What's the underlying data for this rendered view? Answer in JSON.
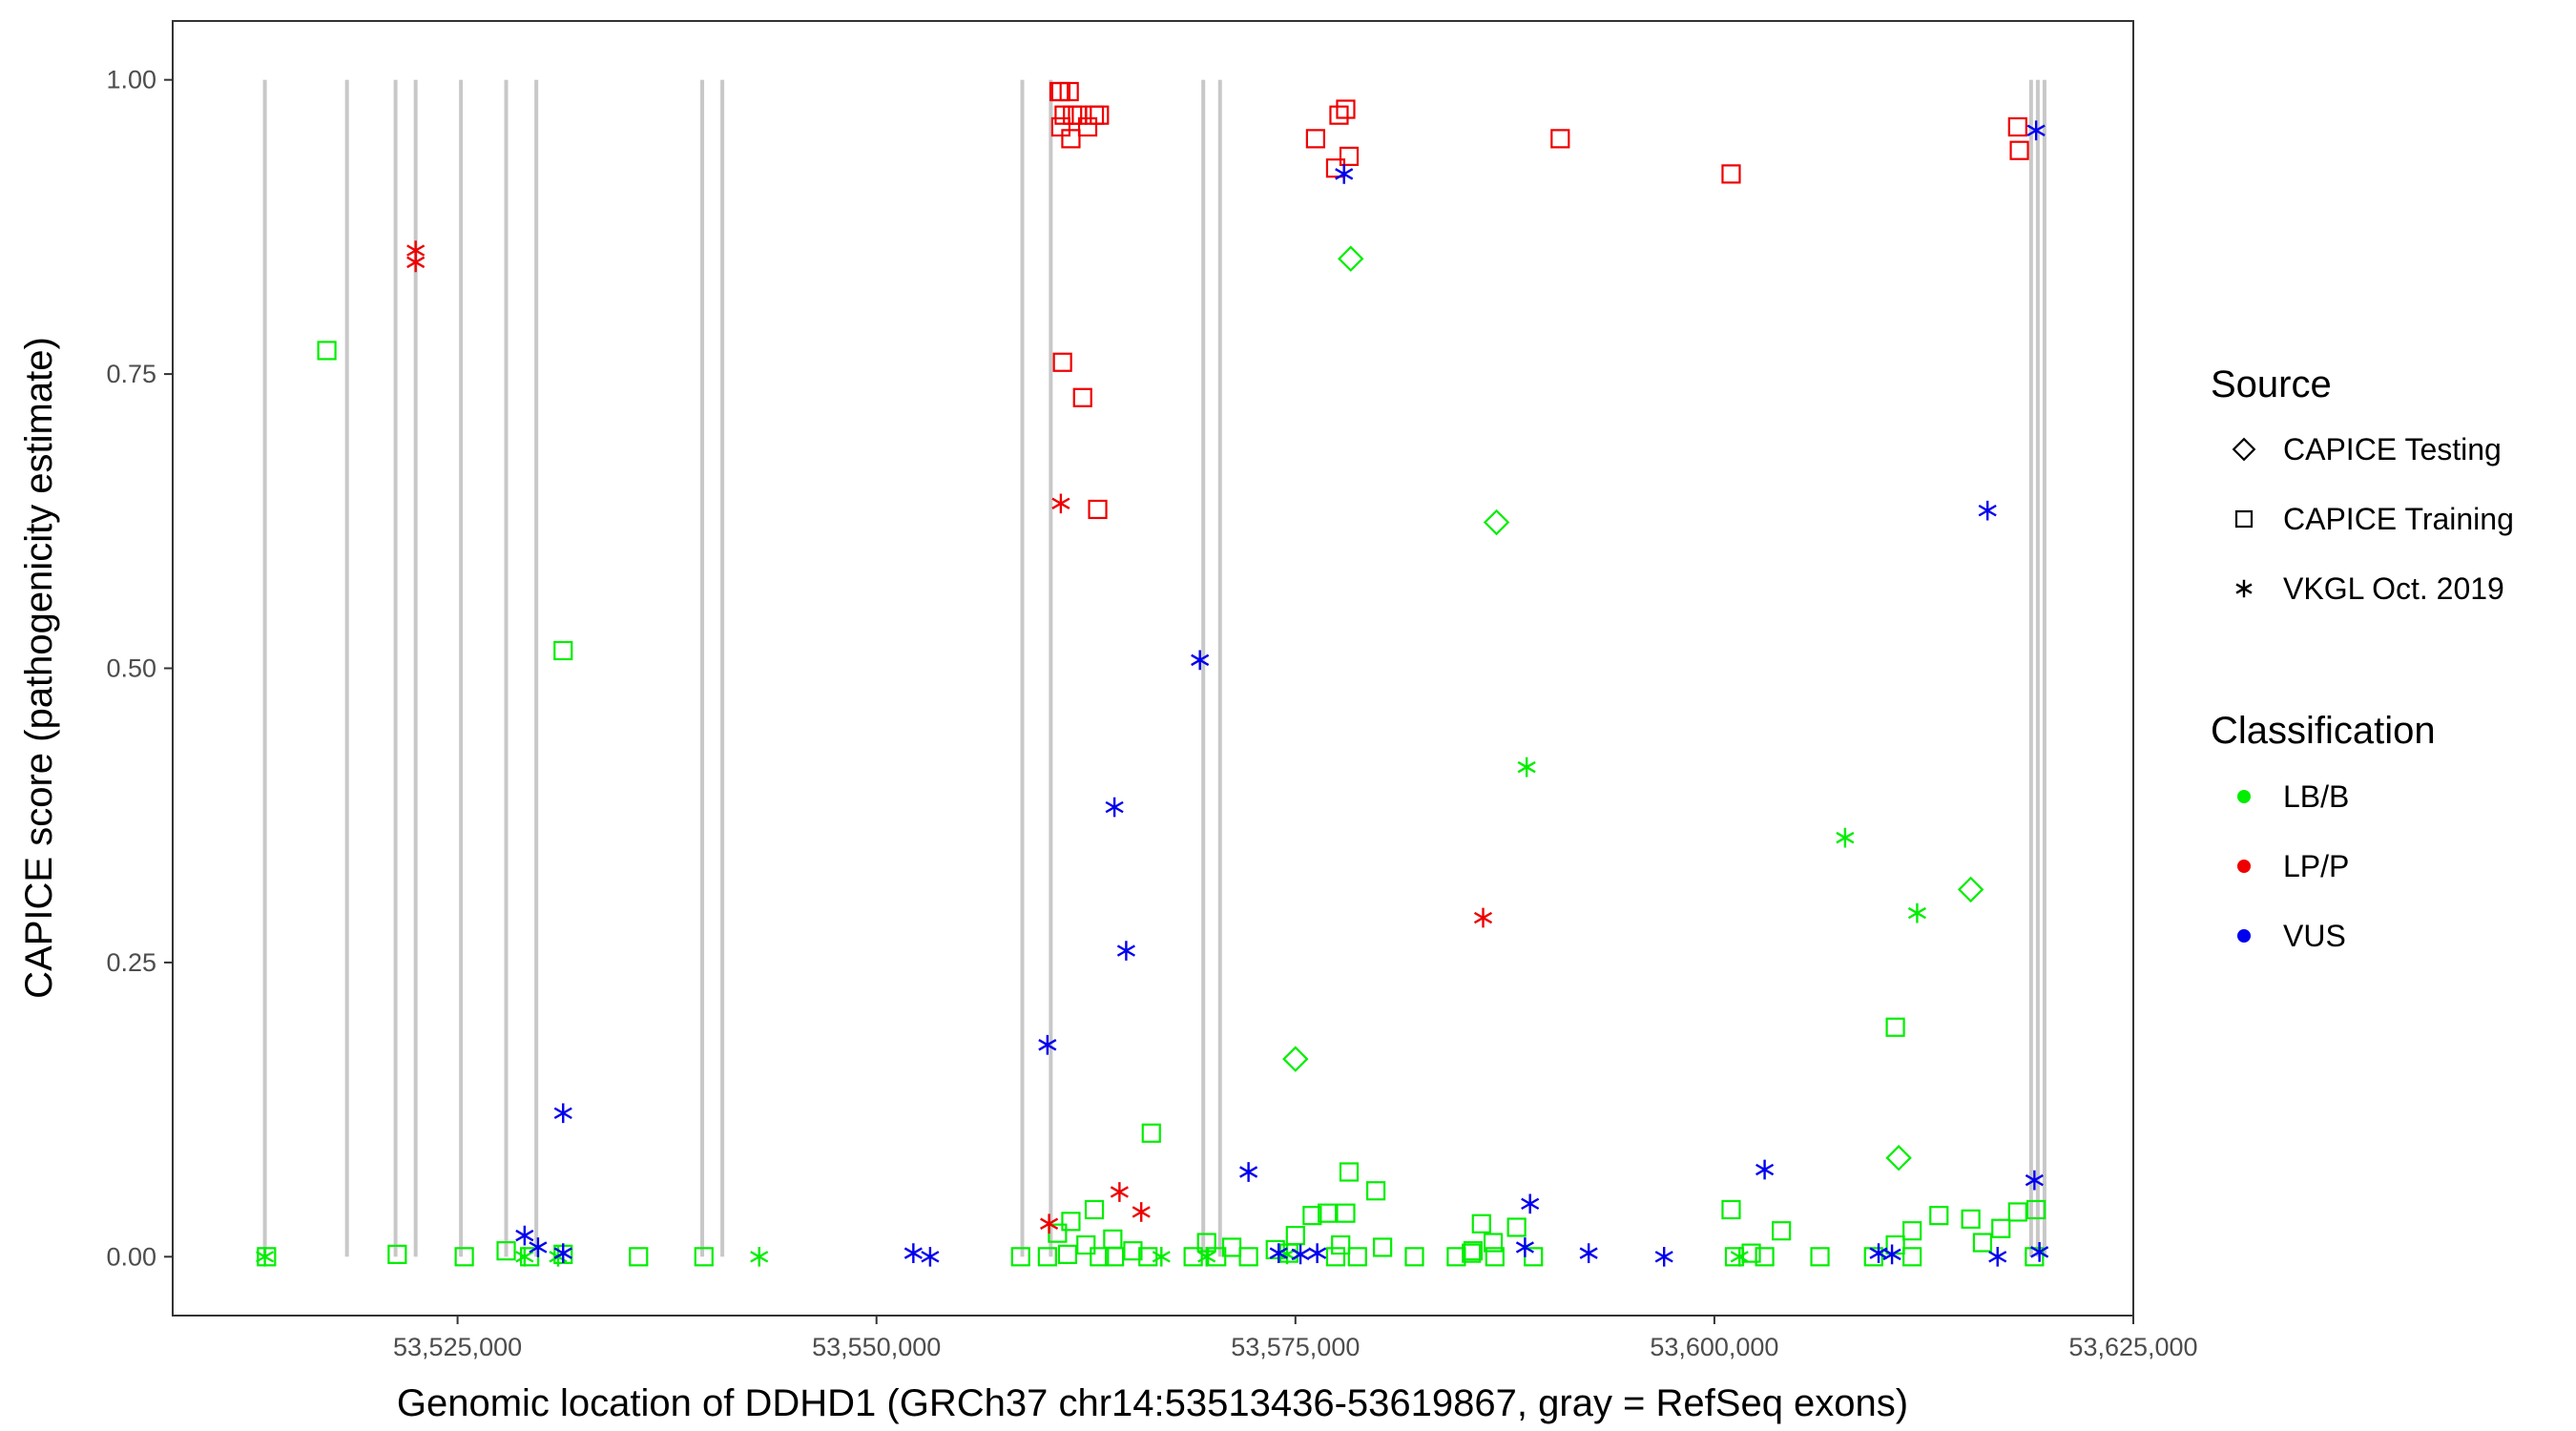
{
  "chart_data": {
    "type": "scatter",
    "title": "",
    "xlabel": "Genomic location of DDHD1 (GRCh37 chr14:53513436-53619867, gray = RefSeq exons)",
    "ylabel": "CAPICE score (pathogenicity estimate)",
    "xlim": [
      53508000,
      53625000
    ],
    "ylim": [
      -0.05,
      1.05
    ],
    "x_ticks": [
      53525000,
      53550000,
      53575000,
      53600000,
      53625000
    ],
    "x_tick_labels": [
      "53,525,000",
      "53,550,000",
      "53,575,000",
      "53,600,000",
      "53,625,000"
    ],
    "y_ticks": [
      0,
      0.25,
      0.5,
      0.75,
      1.0
    ],
    "y_tick_labels": [
      "0.00",
      "0.25",
      "0.50",
      "0.75",
      "1.00"
    ],
    "grid": false,
    "exons": [
      53513500,
      53518400,
      53521300,
      53522500,
      53525200,
      53527900,
      53529700,
      53539600,
      53540800,
      53558700,
      53560400,
      53569500,
      53570500,
      53618900,
      53619300,
      53619700
    ],
    "exon_color": "#c8c8c8",
    "legends": {
      "source": {
        "title": "Source",
        "position": "right",
        "items": [
          {
            "label": "CAPICE Testing",
            "shape": "diamond"
          },
          {
            "label": "CAPICE Training",
            "shape": "square"
          },
          {
            "label": "VKGL Oct. 2019",
            "shape": "asterisk"
          }
        ]
      },
      "classification": {
        "title": "Classification",
        "position": "right",
        "items": [
          {
            "label": "LB/B",
            "color": "#00ee00"
          },
          {
            "label": "LP/P",
            "color": "#ee0000"
          },
          {
            "label": "VUS",
            "color": "#0000ee"
          }
        ]
      }
    },
    "series": [
      {
        "name": "CAPICE Training LP/P",
        "source": "CAPICE Training",
        "classification": "LP/P",
        "x": [
          53560900,
          53561000,
          53561500,
          53561200,
          53562000,
          53561700,
          53563000,
          53563300,
          53562600,
          53561000,
          53561600,
          53561100,
          53562300,
          53563200,
          53576200,
          53577600,
          53578000,
          53578200,
          53577400,
          53590800,
          53601000,
          53618100,
          53618200
        ],
        "y": [
          0.99,
          0.99,
          0.99,
          0.97,
          0.97,
          0.97,
          0.97,
          0.97,
          0.96,
          0.96,
          0.95,
          0.76,
          0.73,
          0.635,
          0.95,
          0.97,
          0.975,
          0.935,
          0.925,
          0.95,
          0.92,
          0.96,
          0.94
        ]
      },
      {
        "name": "CAPICE Training LB/B",
        "source": "CAPICE Training",
        "classification": "LB/B",
        "x": [
          53517200,
          53531300,
          53513600,
          53521400,
          53525400,
          53527900,
          53529300,
          53531300,
          53535800,
          53539700,
          53558600,
          53560200,
          53560800,
          53561600,
          53562500,
          53563300,
          53564100,
          53565300,
          53566200,
          53566400,
          53563000,
          53564200,
          53561400,
          53568900,
          53569700,
          53570300,
          53571200,
          53572200,
          53573800,
          53574600,
          53575000,
          53576000,
          53576900,
          53577400,
          53577700,
          53578000,
          53578200,
          53578700,
          53579800,
          53580200,
          53582100,
          53584600,
          53585500,
          53586100,
          53586800,
          53588200,
          53589200,
          53585600,
          53586900,
          53601000,
          53601200,
          53602200,
          53603000,
          53604000,
          53606300,
          53609500,
          53610800,
          53611800,
          53613400,
          53615300,
          53616000,
          53617100,
          53618100,
          53619200,
          53610800,
          53619100,
          53611800
        ],
        "y": [
          0.77,
          0.515,
          0.0,
          0.002,
          0.0,
          0.005,
          0.0,
          0.002,
          0.0,
          0.0,
          0.0,
          0.0,
          0.02,
          0.03,
          0.01,
          0.0,
          0.015,
          0.005,
          0.0,
          0.105,
          0.04,
          0.0,
          0.002,
          0.0,
          0.012,
          0.0,
          0.008,
          0.0,
          0.006,
          0.003,
          0.018,
          0.035,
          0.037,
          0.0,
          0.01,
          0.037,
          0.072,
          0.0,
          0.056,
          0.008,
          0.0,
          0.0,
          0.003,
          0.028,
          0.012,
          0.025,
          0.0,
          0.005,
          0.0,
          0.04,
          0.0,
          0.003,
          0.0,
          0.022,
          0.0,
          0.0,
          0.01,
          0.022,
          0.035,
          0.032,
          0.012,
          0.024,
          0.038,
          0.04,
          0.195,
          0.0,
          0.0
        ]
      },
      {
        "name": "CAPICE Testing LB/B",
        "source": "CAPICE Testing",
        "classification": "LB/B",
        "x": [
          53578300,
          53587000,
          53575000,
          53611000,
          53615300
        ],
        "y": [
          0.848,
          0.624,
          0.168,
          0.084,
          0.312
        ]
      },
      {
        "name": "VKGL Oct. 2019 LP/P",
        "source": "VKGL Oct. 2019",
        "classification": "LP/P",
        "x": [
          53522500,
          53522500,
          53561000,
          53564500,
          53565800,
          53560300,
          53586200
        ],
        "y": [
          0.855,
          0.845,
          0.64,
          0.055,
          0.038,
          0.028,
          0.288
        ]
      },
      {
        "name": "VKGL Oct. 2019 LB/B",
        "source": "VKGL Oct. 2019",
        "classification": "LB/B",
        "x": [
          53513500,
          53543000,
          53567000,
          53569700,
          53588800,
          53607800,
          53612100,
          53601500,
          53574500,
          53529000,
          53531000
        ],
        "y": [
          0.0,
          0.0,
          0.0,
          0.0,
          0.416,
          0.356,
          0.292,
          0.0,
          0.002,
          0.0,
          0.0
        ]
      },
      {
        "name": "VKGL Oct. 2019 VUS",
        "source": "VKGL Oct. 2019",
        "classification": "VUS",
        "x": [
          53529000,
          53529800,
          53531300,
          53531300,
          53552200,
          53553200,
          53560200,
          53564200,
          53564900,
          53569300,
          53572200,
          53574000,
          53575300,
          53576300,
          53577900,
          53589000,
          53588700,
          53592500,
          53597000,
          53603000,
          53609800,
          53610600,
          53616300,
          53616900,
          53619100,
          53619200,
          53619400
        ],
        "y": [
          0.018,
          0.008,
          0.003,
          0.122,
          0.003,
          0.0,
          0.18,
          0.382,
          0.26,
          0.507,
          0.072,
          0.003,
          0.002,
          0.003,
          0.92,
          0.045,
          0.008,
          0.003,
          0.0,
          0.074,
          0.003,
          0.002,
          0.634,
          0.0,
          0.065,
          0.957,
          0.004
        ]
      }
    ]
  }
}
